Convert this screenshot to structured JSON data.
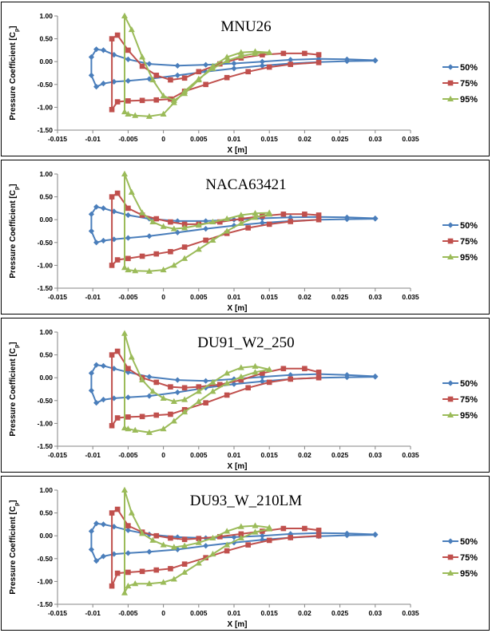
{
  "chart_data": [
    {
      "type": "line",
      "title": "MNU26",
      "xlabel": "X [m]",
      "ylabel": "Pressure Coefficient [Cp]",
      "xlim": [
        -0.015,
        0.035
      ],
      "ylim": [
        -1.5,
        1.0
      ],
      "x_ticks": [
        "-0.015",
        "-0.01",
        "-0.005",
        "0",
        "0.005",
        "0.01",
        "0.015",
        "0.02",
        "0.025",
        "0.03",
        "0.035"
      ],
      "y_ticks": [
        "1.00",
        "0.50",
        "0.00",
        "-0.50",
        "-1.00",
        "-1.50"
      ],
      "legend": "right",
      "series": [
        {
          "name": "50%",
          "color": "#4a7ebb",
          "marker": "diamond",
          "x": [
            0.03,
            0.026,
            0.022,
            0.018,
            0.014,
            0.01,
            0.006,
            0.002,
            -0.002,
            -0.005,
            -0.007,
            -0.0085,
            -0.0095,
            -0.0102,
            -0.0102,
            -0.0095,
            -0.0085,
            -0.007,
            -0.005,
            -0.002,
            0.002,
            0.006,
            0.01,
            0.014,
            0.018,
            0.022,
            0.026,
            0.03
          ],
          "y": [
            0.03,
            0.05,
            0.06,
            0.04,
            0.0,
            -0.04,
            -0.07,
            -0.09,
            -0.05,
            0.05,
            0.15,
            0.25,
            0.27,
            0.1,
            -0.3,
            -0.55,
            -0.48,
            -0.44,
            -0.42,
            -0.38,
            -0.3,
            -0.22,
            -0.15,
            -0.09,
            -0.04,
            -0.01,
            0.01,
            0.02
          ]
        },
        {
          "name": "75%",
          "color": "#c0504d",
          "marker": "square",
          "x": [
            0.022,
            0.02,
            0.017,
            0.014,
            0.011,
            0.008,
            0.005,
            0.003,
            0.001,
            -0.001,
            -0.003,
            -0.005,
            -0.0065,
            -0.0073,
            -0.0073,
            -0.0065,
            -0.005,
            -0.003,
            -0.001,
            0.001,
            0.003,
            0.006,
            0.009,
            0.012,
            0.015,
            0.018,
            0.022
          ],
          "y": [
            0.15,
            0.18,
            0.18,
            0.15,
            0.08,
            -0.05,
            -0.22,
            -0.36,
            -0.4,
            -0.3,
            -0.1,
            0.25,
            0.58,
            0.5,
            -1.05,
            -0.88,
            -0.86,
            -0.85,
            -0.84,
            -0.82,
            -0.65,
            -0.5,
            -0.35,
            -0.22,
            -0.12,
            -0.06,
            -0.02
          ]
        },
        {
          "name": "95%",
          "color": "#9bbb59",
          "marker": "triangle",
          "x": [
            0.015,
            0.013,
            0.011,
            0.009,
            0.007,
            0.005,
            0.003,
            0.0015,
            0.0,
            -0.0015,
            -0.003,
            -0.0045,
            -0.0055,
            -0.0055,
            -0.005,
            -0.004,
            -0.002,
            0.0,
            0.0015,
            0.003,
            0.005,
            0.007,
            0.009,
            0.011,
            0.013,
            0.015
          ],
          "y": [
            0.2,
            0.22,
            0.2,
            0.1,
            -0.1,
            -0.4,
            -0.7,
            -0.85,
            -0.75,
            -0.4,
            0.1,
            0.7,
            1.0,
            -1.1,
            -1.15,
            -1.18,
            -1.2,
            -1.15,
            -0.9,
            -0.65,
            -0.38,
            -0.15,
            0.02,
            0.12,
            0.18,
            0.2
          ]
        }
      ]
    },
    {
      "type": "line",
      "title": "NACA63421",
      "xlabel": "X [m]",
      "ylabel": "Pressure Coefficient [Cp]",
      "xlim": [
        -0.015,
        0.035
      ],
      "ylim": [
        -1.5,
        1.0
      ],
      "x_ticks": [
        "-0.015",
        "-0.01",
        "-0.005",
        "0",
        "0.005",
        "0.01",
        "0.015",
        "0.02",
        "0.025",
        "0.03",
        "0.035"
      ],
      "y_ticks": [
        "1.00",
        "0.50",
        "0.00",
        "-0.50",
        "-1.00",
        "-1.50"
      ],
      "legend": "right",
      "series": [
        {
          "name": "50%",
          "color": "#4a7ebb",
          "marker": "diamond",
          "x": [
            0.03,
            0.026,
            0.022,
            0.018,
            0.014,
            0.01,
            0.006,
            0.002,
            -0.002,
            -0.005,
            -0.007,
            -0.0085,
            -0.0095,
            -0.0102,
            -0.0102,
            -0.0095,
            -0.0085,
            -0.007,
            -0.005,
            -0.002,
            0.002,
            0.006,
            0.01,
            0.014,
            0.018,
            0.022,
            0.026,
            0.03
          ],
          "y": [
            0.03,
            0.05,
            0.06,
            0.05,
            0.03,
            0.0,
            -0.03,
            -0.03,
            0.02,
            0.1,
            0.18,
            0.25,
            0.28,
            0.12,
            -0.25,
            -0.5,
            -0.46,
            -0.43,
            -0.4,
            -0.36,
            -0.28,
            -0.2,
            -0.13,
            -0.07,
            -0.03,
            0.0,
            0.01,
            0.02
          ]
        },
        {
          "name": "75%",
          "color": "#c0504d",
          "marker": "square",
          "x": [
            0.022,
            0.02,
            0.017,
            0.014,
            0.011,
            0.008,
            0.005,
            0.003,
            0.001,
            -0.001,
            -0.003,
            -0.005,
            -0.0065,
            -0.0073,
            -0.0073,
            -0.0065,
            -0.005,
            -0.003,
            -0.001,
            0.001,
            0.003,
            0.006,
            0.009,
            0.012,
            0.015,
            0.018,
            0.022
          ],
          "y": [
            0.1,
            0.12,
            0.12,
            0.08,
            0.02,
            -0.05,
            -0.1,
            -0.1,
            -0.05,
            0.02,
            0.1,
            0.25,
            0.58,
            0.5,
            -1.0,
            -0.88,
            -0.85,
            -0.8,
            -0.75,
            -0.7,
            -0.6,
            -0.45,
            -0.3,
            -0.18,
            -0.1,
            -0.04,
            0.0
          ]
        },
        {
          "name": "95%",
          "color": "#9bbb59",
          "marker": "triangle",
          "x": [
            0.015,
            0.013,
            0.011,
            0.009,
            0.007,
            0.005,
            0.003,
            0.0015,
            0.0,
            -0.0015,
            -0.003,
            -0.0045,
            -0.0055,
            -0.0055,
            -0.005,
            -0.004,
            -0.002,
            0.0,
            0.0015,
            0.003,
            0.005,
            0.007,
            0.009,
            0.011,
            0.013,
            0.015
          ],
          "y": [
            0.15,
            0.14,
            0.1,
            0.02,
            -0.05,
            -0.12,
            -0.18,
            -0.2,
            -0.15,
            -0.05,
            0.15,
            0.6,
            1.0,
            -1.05,
            -1.1,
            -1.12,
            -1.13,
            -1.1,
            -1.0,
            -0.85,
            -0.65,
            -0.45,
            -0.25,
            -0.08,
            0.05,
            0.12
          ]
        }
      ]
    },
    {
      "type": "line",
      "title": "DU91_W2_250",
      "xlabel": "X [m]",
      "ylabel": "Pressure Coefficient [Cp]",
      "xlim": [
        -0.015,
        0.035
      ],
      "ylim": [
        -1.5,
        1.0
      ],
      "x_ticks": [
        "-0.015",
        "-0.01",
        "-0.005",
        "0",
        "0.005",
        "0.01",
        "0.015",
        "0.02",
        "0.025",
        "0.03",
        "0.035"
      ],
      "y_ticks": [
        "1.00",
        "0.50",
        "0.00",
        "-0.50",
        "-1.00",
        "-1.50"
      ],
      "legend": "right",
      "series": [
        {
          "name": "50%",
          "color": "#4a7ebb",
          "marker": "diamond",
          "x": [
            0.03,
            0.026,
            0.022,
            0.018,
            0.014,
            0.01,
            0.006,
            0.002,
            -0.002,
            -0.005,
            -0.007,
            -0.0085,
            -0.0095,
            -0.0102,
            -0.0102,
            -0.0095,
            -0.0085,
            -0.007,
            -0.005,
            -0.002,
            0.002,
            0.006,
            0.01,
            0.014,
            0.018,
            0.022,
            0.026,
            0.03
          ],
          "y": [
            0.03,
            0.06,
            0.08,
            0.06,
            0.02,
            -0.03,
            -0.07,
            -0.05,
            0.02,
            0.12,
            0.2,
            0.26,
            0.28,
            0.1,
            -0.28,
            -0.55,
            -0.48,
            -0.45,
            -0.43,
            -0.4,
            -0.32,
            -0.22,
            -0.14,
            -0.08,
            -0.03,
            0.0,
            0.01,
            0.02
          ]
        },
        {
          "name": "75%",
          "color": "#c0504d",
          "marker": "square",
          "x": [
            0.022,
            0.02,
            0.017,
            0.014,
            0.011,
            0.008,
            0.005,
            0.003,
            0.001,
            -0.001,
            -0.003,
            -0.005,
            -0.0065,
            -0.0073,
            -0.0073,
            -0.0065,
            -0.005,
            -0.003,
            -0.001,
            0.001,
            0.003,
            0.006,
            0.009,
            0.012,
            0.015,
            0.018,
            0.022
          ],
          "y": [
            0.12,
            0.2,
            0.2,
            0.1,
            -0.05,
            -0.15,
            -0.2,
            -0.22,
            -0.2,
            -0.1,
            0.0,
            0.2,
            0.58,
            0.5,
            -1.05,
            -0.88,
            -0.86,
            -0.85,
            -0.82,
            -0.8,
            -0.7,
            -0.55,
            -0.38,
            -0.22,
            -0.1,
            -0.03,
            0.0
          ]
        },
        {
          "name": "95%",
          "color": "#9bbb59",
          "marker": "triangle",
          "x": [
            0.015,
            0.013,
            0.011,
            0.009,
            0.007,
            0.005,
            0.003,
            0.0015,
            0.0,
            -0.0015,
            -0.003,
            -0.0045,
            -0.0055,
            -0.0055,
            -0.005,
            -0.004,
            -0.002,
            0.0,
            0.0015,
            0.003,
            0.005,
            0.007,
            0.009,
            0.011,
            0.013,
            0.015
          ],
          "y": [
            0.18,
            0.25,
            0.22,
            0.1,
            -0.1,
            -0.3,
            -0.48,
            -0.52,
            -0.45,
            -0.3,
            -0.05,
            0.45,
            0.97,
            -1.1,
            -1.12,
            -1.15,
            -1.2,
            -1.12,
            -0.95,
            -0.75,
            -0.52,
            -0.3,
            -0.12,
            0.02,
            0.12,
            0.18
          ]
        }
      ]
    },
    {
      "type": "line",
      "title": "DU93_W_210LM",
      "xlabel": "X [m]",
      "ylabel": "Pressure Coefficient [Cp]",
      "xlim": [
        -0.015,
        0.035
      ],
      "ylim": [
        -1.5,
        1.0
      ],
      "x_ticks": [
        "-0.015",
        "-0.01",
        "-0.005",
        "0",
        "0.005",
        "0.01",
        "0.015",
        "0.02",
        "0.025",
        "0.03",
        "0.035"
      ],
      "y_ticks": [
        "1.00",
        "0.50",
        "0.00",
        "-0.50",
        "-1.00",
        "-1.50"
      ],
      "legend": "right",
      "series": [
        {
          "name": "50%",
          "color": "#4a7ebb",
          "marker": "diamond",
          "x": [
            0.03,
            0.026,
            0.022,
            0.018,
            0.014,
            0.01,
            0.006,
            0.002,
            -0.002,
            -0.005,
            -0.007,
            -0.0085,
            -0.0095,
            -0.0102,
            -0.0102,
            -0.0095,
            -0.0085,
            -0.007,
            -0.005,
            -0.002,
            0.002,
            0.006,
            0.01,
            0.014,
            0.018,
            0.022,
            0.026,
            0.03
          ],
          "y": [
            0.03,
            0.05,
            0.06,
            0.04,
            0.0,
            -0.03,
            -0.05,
            -0.03,
            0.03,
            0.12,
            0.2,
            0.25,
            0.27,
            0.1,
            -0.3,
            -0.55,
            -0.45,
            -0.4,
            -0.38,
            -0.35,
            -0.3,
            -0.22,
            -0.15,
            -0.09,
            -0.04,
            -0.01,
            0.01,
            0.02
          ]
        },
        {
          "name": "75%",
          "color": "#c0504d",
          "marker": "square",
          "x": [
            0.022,
            0.02,
            0.017,
            0.014,
            0.011,
            0.008,
            0.005,
            0.003,
            0.001,
            -0.001,
            -0.003,
            -0.005,
            -0.0065,
            -0.0073,
            -0.0073,
            -0.0065,
            -0.005,
            -0.003,
            -0.001,
            0.001,
            0.003,
            0.006,
            0.009,
            0.012,
            0.015,
            0.018,
            0.022
          ],
          "y": [
            0.12,
            0.16,
            0.16,
            0.1,
            0.04,
            -0.02,
            -0.06,
            -0.08,
            -0.05,
            0.0,
            0.08,
            0.22,
            0.58,
            0.5,
            -1.1,
            -0.82,
            -0.8,
            -0.78,
            -0.75,
            -0.72,
            -0.62,
            -0.48,
            -0.33,
            -0.2,
            -0.1,
            -0.04,
            0.0
          ]
        },
        {
          "name": "95%",
          "color": "#9bbb59",
          "marker": "triangle",
          "x": [
            0.015,
            0.013,
            0.011,
            0.009,
            0.007,
            0.005,
            0.003,
            0.0015,
            0.0,
            -0.0015,
            -0.003,
            -0.0045,
            -0.0055,
            -0.0055,
            -0.005,
            -0.004,
            -0.002,
            0.0,
            0.0015,
            0.003,
            0.005,
            0.007,
            0.009,
            0.011,
            0.013,
            0.015
          ],
          "y": [
            0.18,
            0.22,
            0.2,
            0.1,
            -0.05,
            -0.15,
            -0.22,
            -0.25,
            -0.2,
            -0.1,
            0.05,
            0.5,
            1.0,
            -1.25,
            -1.1,
            -1.05,
            -1.05,
            -1.02,
            -0.95,
            -0.8,
            -0.6,
            -0.4,
            -0.2,
            -0.05,
            0.08,
            0.15
          ]
        }
      ]
    }
  ]
}
